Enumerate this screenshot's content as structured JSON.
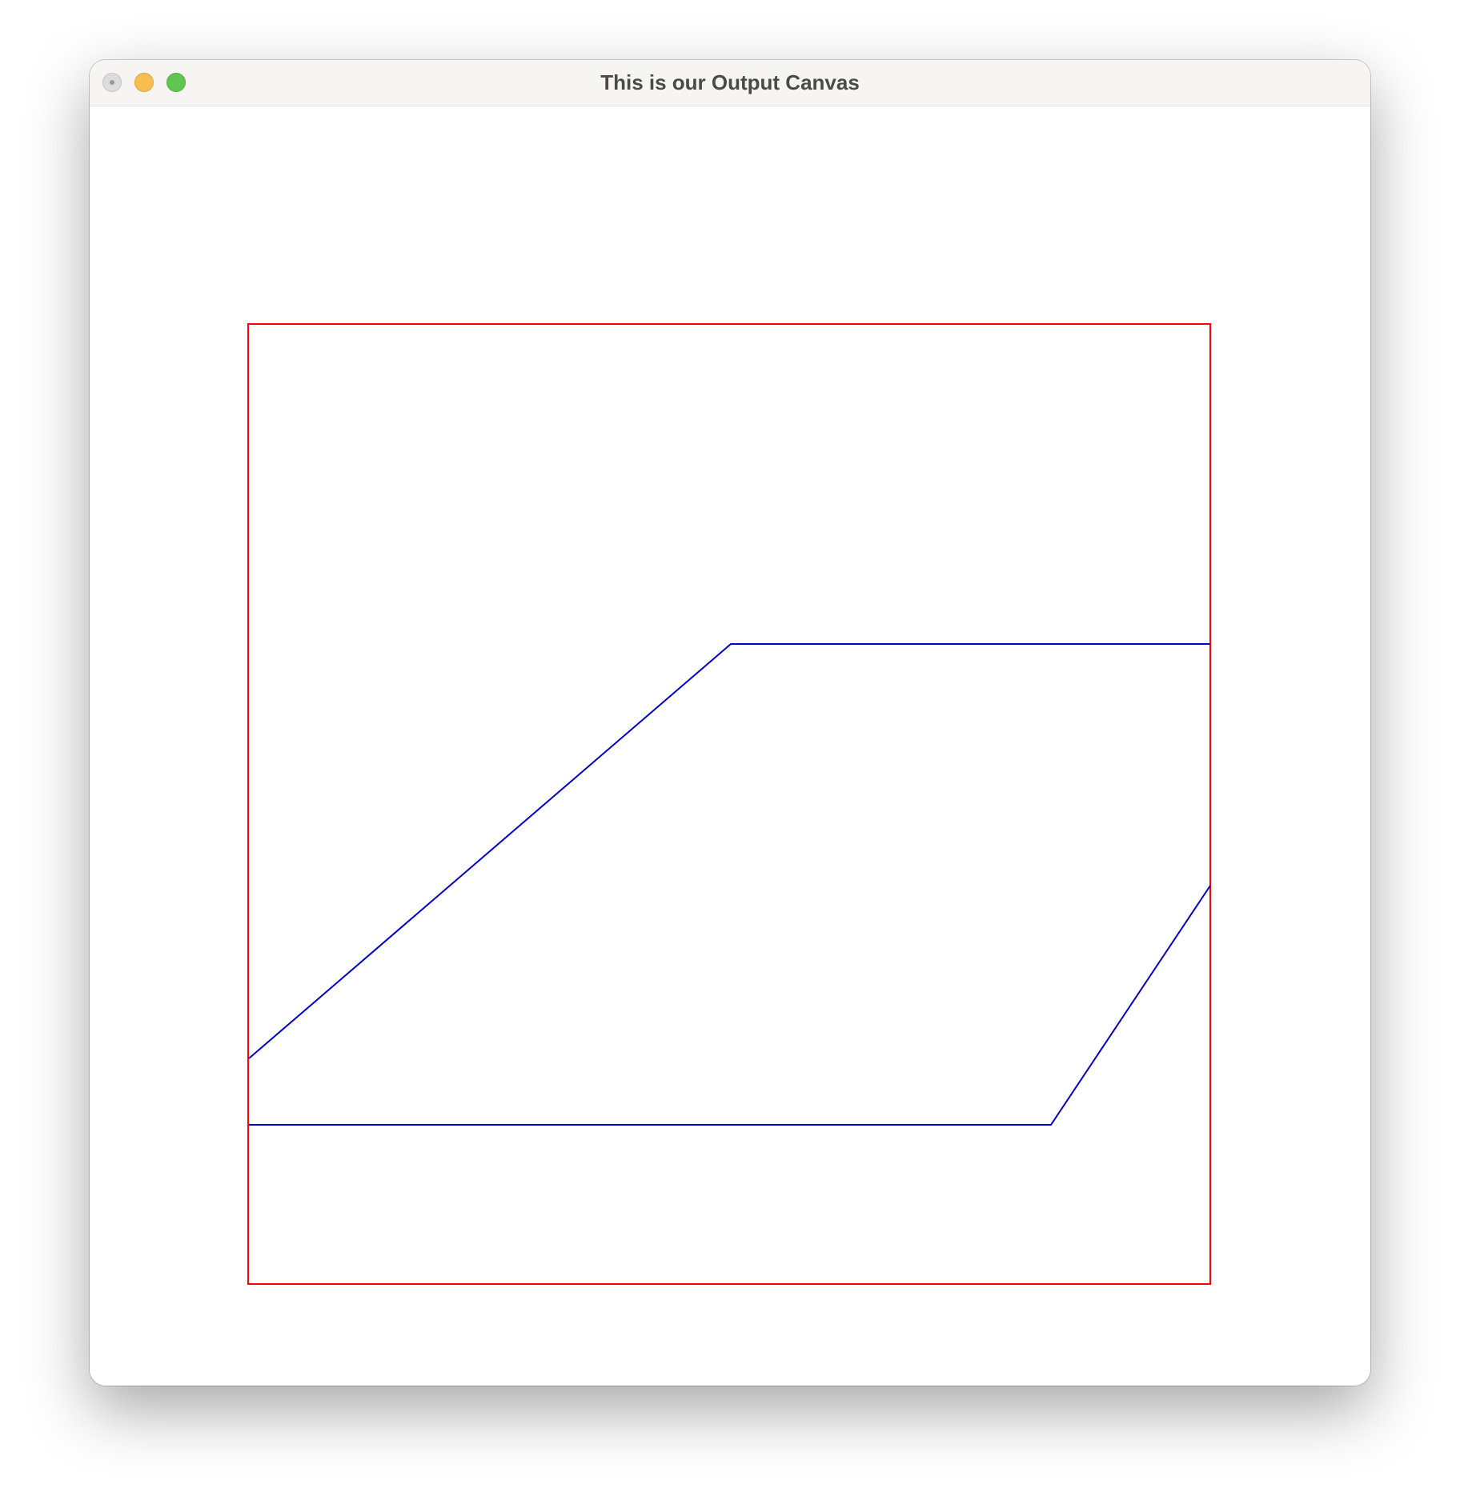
{
  "window": {
    "title": "This is our Output Canvas"
  },
  "colors": {
    "clip_window": "#ff0000",
    "polygon": "#0000cc"
  },
  "canvas": {
    "clip_window_label": "",
    "polygon_label": ""
  }
}
